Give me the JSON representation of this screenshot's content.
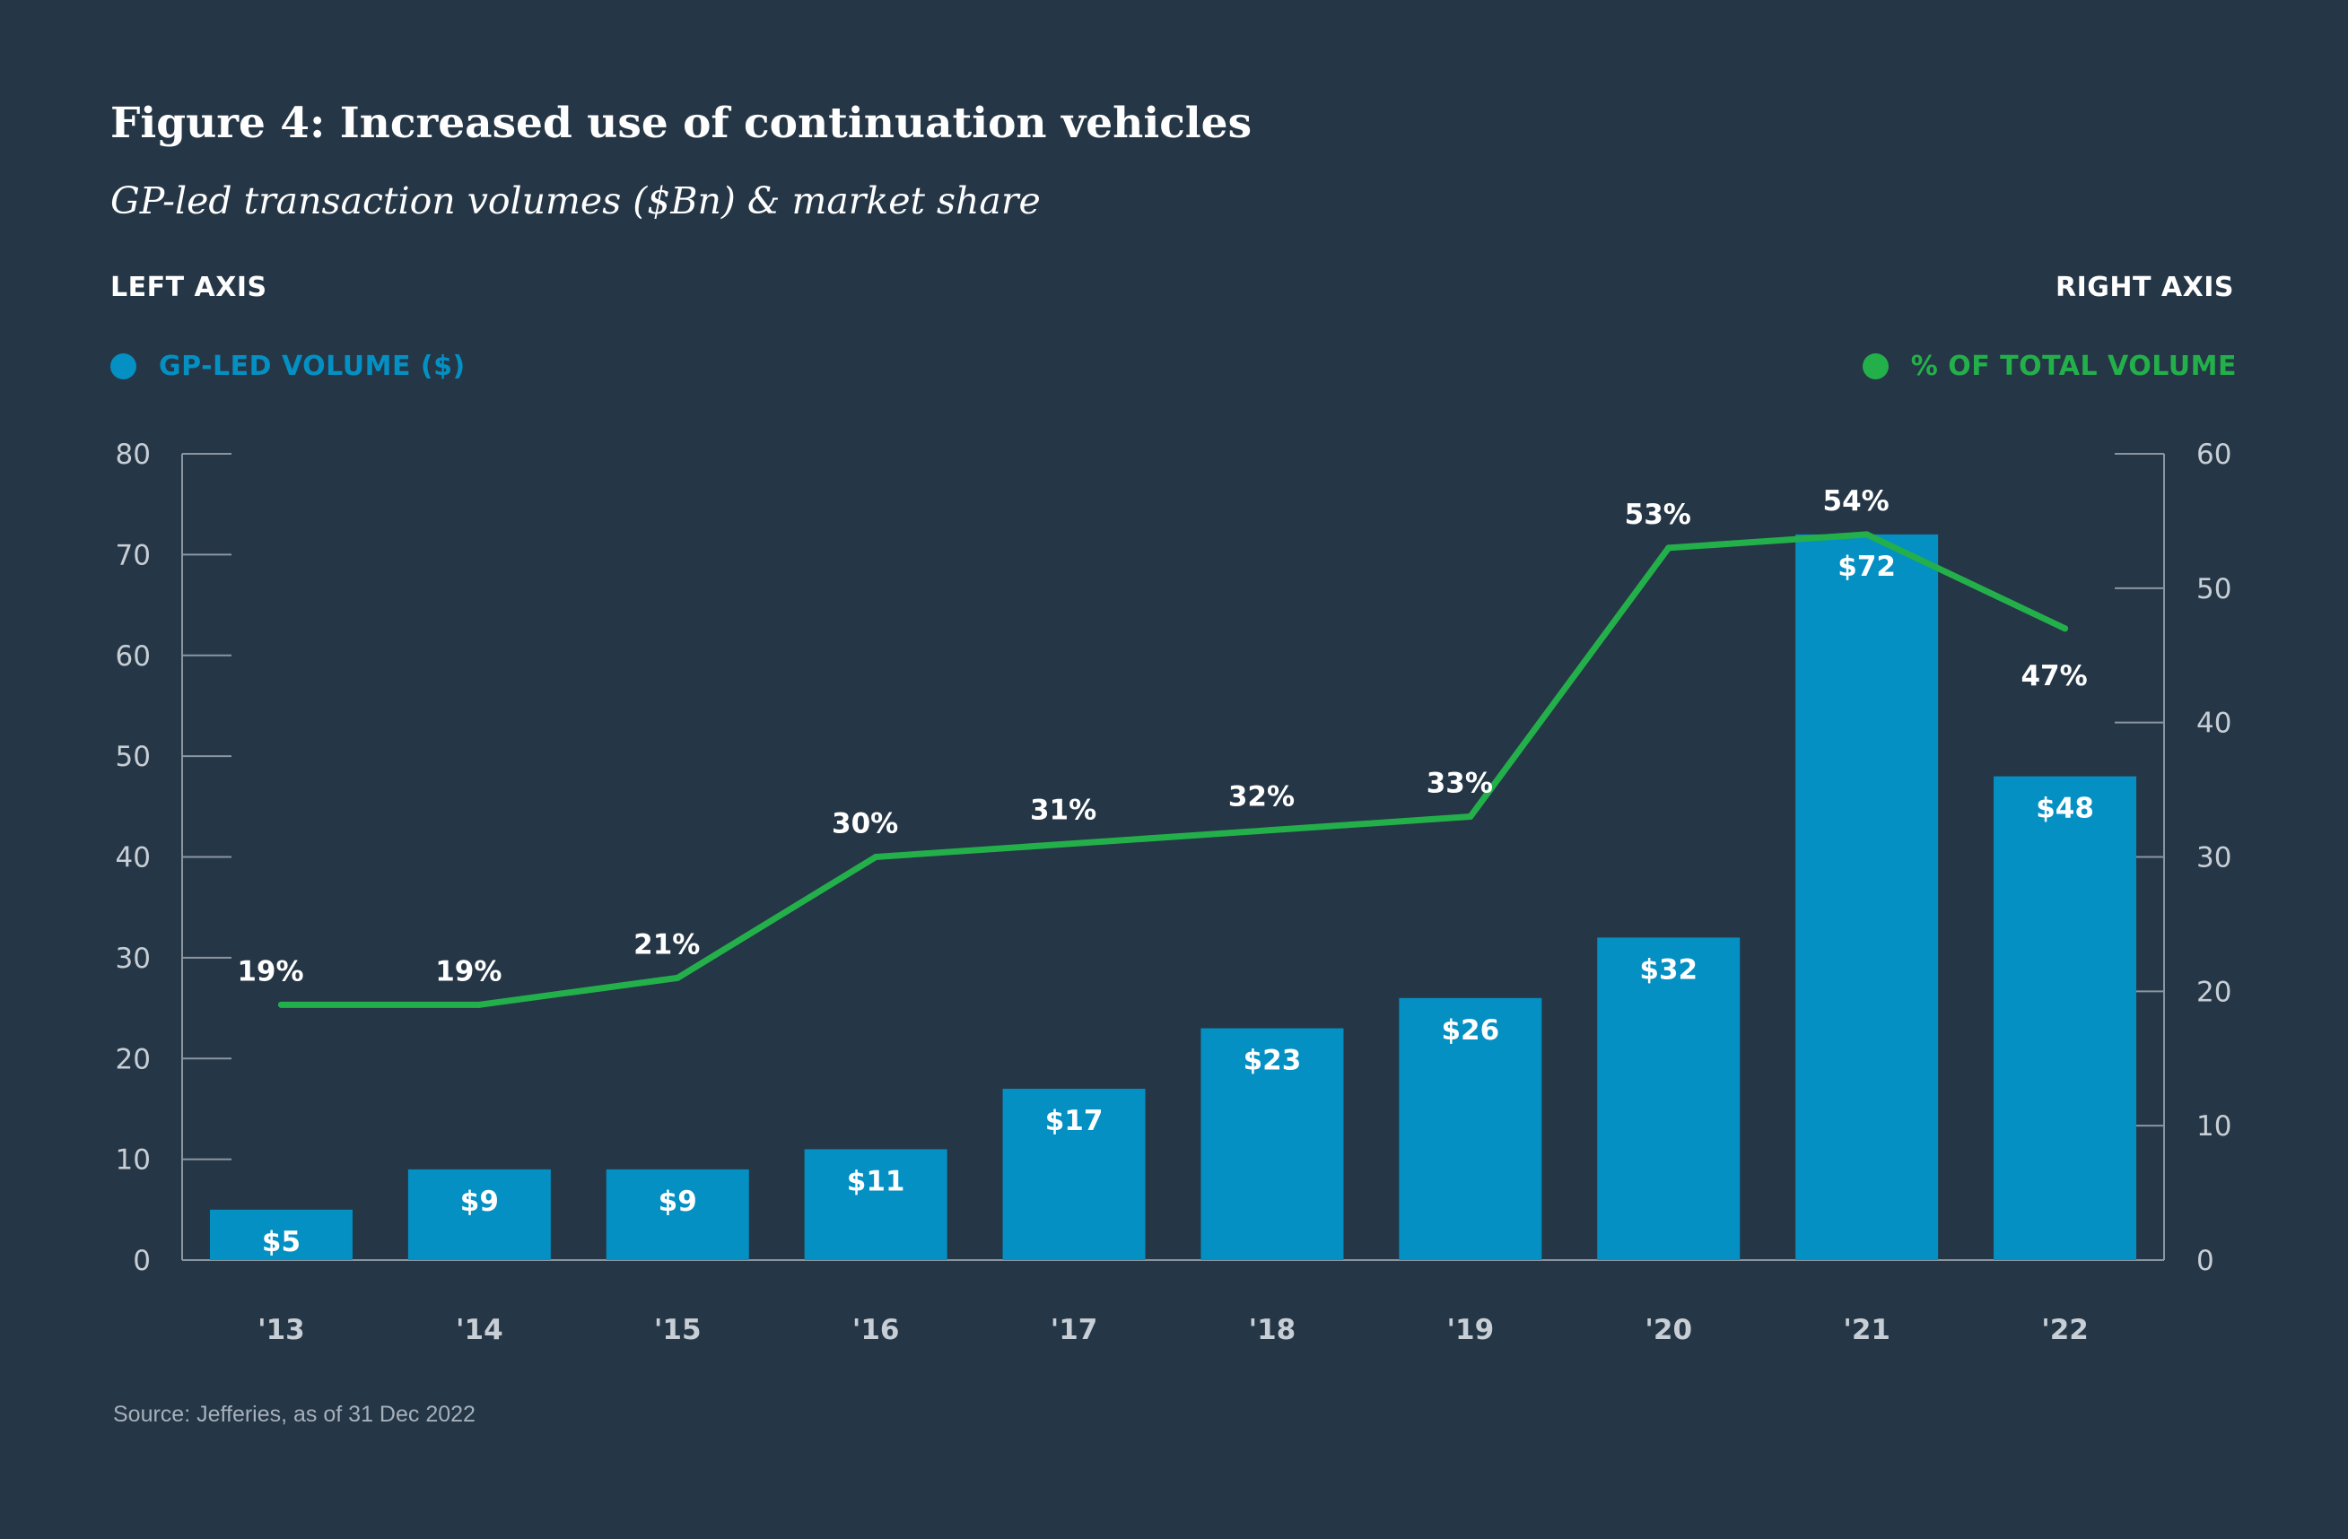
{
  "header": {
    "title": "Figure 4: Increased use of continuation vehicles",
    "subtitle": "GP-led transaction volumes ($Bn) & market share"
  },
  "axes": {
    "left_caption": "LEFT AXIS",
    "right_caption": "RIGHT AXIS"
  },
  "legend": {
    "left_label": "GP-LED VOLUME ($)",
    "right_label": "% OF TOTAL VOLUME"
  },
  "colors": {
    "background": "#253646",
    "bar": "#0490c3",
    "line": "#23b04a",
    "axis": "#8b96a1",
    "tick_text": "#c7ced5"
  },
  "chart_data": {
    "type": "bar",
    "categories": [
      "'13",
      "'14",
      "'15",
      "'16",
      "'17",
      "'18",
      "'19",
      "'20",
      "'21",
      "'22"
    ],
    "series": [
      {
        "name": "GP-LED VOLUME ($)",
        "axis": "left",
        "type": "bar",
        "values": [
          5,
          9,
          9,
          11,
          17,
          23,
          26,
          32,
          72,
          48
        ],
        "labels": [
          "$5",
          "$9",
          "$9",
          "$11",
          "$17",
          "$23",
          "$26",
          "$32",
          "$72",
          "$48"
        ]
      },
      {
        "name": "% OF TOTAL VOLUME",
        "axis": "right",
        "type": "line",
        "values": [
          19,
          19,
          21,
          30,
          31,
          32,
          33,
          53,
          54,
          47
        ],
        "labels": [
          "19%",
          "19%",
          "21%",
          "30%",
          "31%",
          "32%",
          "33%",
          "53%",
          "54%",
          "47%"
        ]
      }
    ],
    "left_axis": {
      "ylim": [
        0,
        80
      ],
      "ticks": [
        0,
        10,
        20,
        30,
        40,
        50,
        60,
        70,
        80
      ]
    },
    "right_axis": {
      "ylim": [
        0,
        60
      ],
      "ticks": [
        0,
        10,
        20,
        30,
        40,
        50,
        60
      ]
    },
    "grid": false,
    "legend_position": "top"
  },
  "footer": {
    "source": "Source: Jefferies, as of 31 Dec 2022"
  }
}
